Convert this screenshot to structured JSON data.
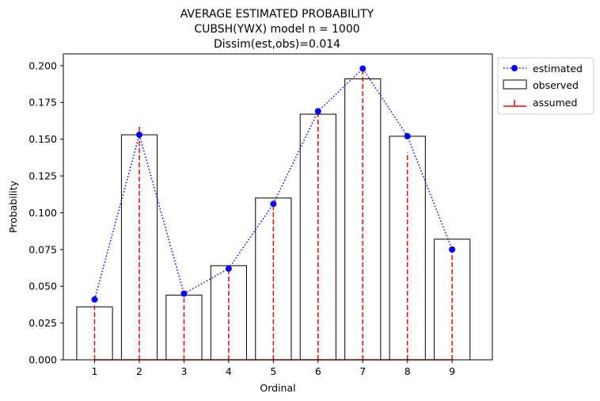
{
  "chart_data": {
    "type": "bar",
    "title_lines": [
      "AVERAGE ESTIMATED PROBABILITY",
      "CUBSH(YWX) model    n = 1000",
      "Dissim(est,obs)=0.014"
    ],
    "xlabel": "Ordinal",
    "ylabel": "Probability",
    "xlim": [
      0.3,
      9.9
    ],
    "ylim": [
      0,
      0.208
    ],
    "categories": [
      1,
      2,
      3,
      4,
      5,
      6,
      7,
      8,
      9
    ],
    "yticks": [
      0.0,
      0.025,
      0.05,
      0.075,
      0.1,
      0.125,
      0.15,
      0.175,
      0.2
    ],
    "ytick_labels": [
      "0.000",
      "0.025",
      "0.050",
      "0.075",
      "0.100",
      "0.125",
      "0.150",
      "0.175",
      "0.200"
    ],
    "legend_position": "outside top-right",
    "series": [
      {
        "name": "estimated",
        "style": "dotted line with circle markers",
        "color": "#0000ff",
        "values": [
          0.041,
          0.153,
          0.045,
          0.062,
          0.106,
          0.169,
          0.198,
          0.152,
          0.075
        ]
      },
      {
        "name": "observed",
        "style": "unfilled bars",
        "color": "#000000",
        "values": [
          0.036,
          0.153,
          0.044,
          0.064,
          0.11,
          0.167,
          0.191,
          0.152,
          0.082
        ]
      },
      {
        "name": "assumed",
        "style": "dashed stems",
        "color": "#ff0000",
        "values": [
          0.037,
          0.16,
          0.044,
          0.064,
          0.106,
          0.17,
          0.198,
          0.141,
          0.074
        ]
      }
    ]
  }
}
